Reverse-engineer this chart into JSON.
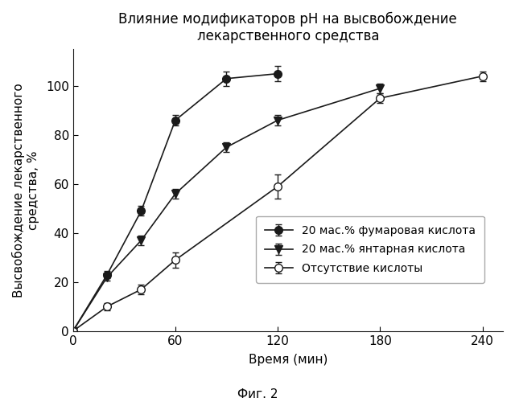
{
  "title": "Влияние модификаторов рН на высвобождение\nлекарственного средства",
  "xlabel": "Время (мин)",
  "ylabel": "Высвобождение лекарственного\nсредства, %",
  "caption": "Фиг. 2",
  "series": [
    {
      "label": "20 мас.% фумаровая кислота",
      "x": [
        0,
        20,
        40,
        60,
        90,
        120
      ],
      "y": [
        0,
        23,
        49,
        86,
        103,
        105
      ],
      "yerr": [
        0,
        1.5,
        2,
        2,
        3,
        3
      ],
      "color": "#1a1a1a",
      "marker": "o",
      "markerfacecolor": "#1a1a1a",
      "markeredgecolor": "#1a1a1a",
      "linestyle": "-"
    },
    {
      "label": "20 мас.% янтарная кислота",
      "x": [
        0,
        20,
        40,
        60,
        90,
        120,
        180
      ],
      "y": [
        0,
        22,
        37,
        56,
        75,
        86,
        99
      ],
      "yerr": [
        0,
        1.5,
        2,
        2,
        2,
        2,
        2
      ],
      "color": "#1a1a1a",
      "marker": "v",
      "markerfacecolor": "#1a1a1a",
      "markeredgecolor": "#1a1a1a",
      "linestyle": "-"
    },
    {
      "label": "Отсутствие кислоты",
      "x": [
        0,
        20,
        40,
        60,
        120,
        180,
        240
      ],
      "y": [
        0,
        10,
        17,
        29,
        59,
        95,
        104
      ],
      "yerr": [
        0,
        1.5,
        2,
        3,
        5,
        2,
        2
      ],
      "color": "#1a1a1a",
      "marker": "o",
      "markerfacecolor": "#ffffff",
      "markeredgecolor": "#1a1a1a",
      "linestyle": "-"
    }
  ],
  "xlim": [
    0,
    252
  ],
  "ylim": [
    0,
    115
  ],
  "xticks": [
    0,
    60,
    120,
    180,
    240
  ],
  "yticks": [
    0,
    20,
    40,
    60,
    80,
    100
  ],
  "background_color": "#ffffff",
  "title_fontsize": 12,
  "label_fontsize": 11,
  "tick_fontsize": 11,
  "legend_fontsize": 10
}
